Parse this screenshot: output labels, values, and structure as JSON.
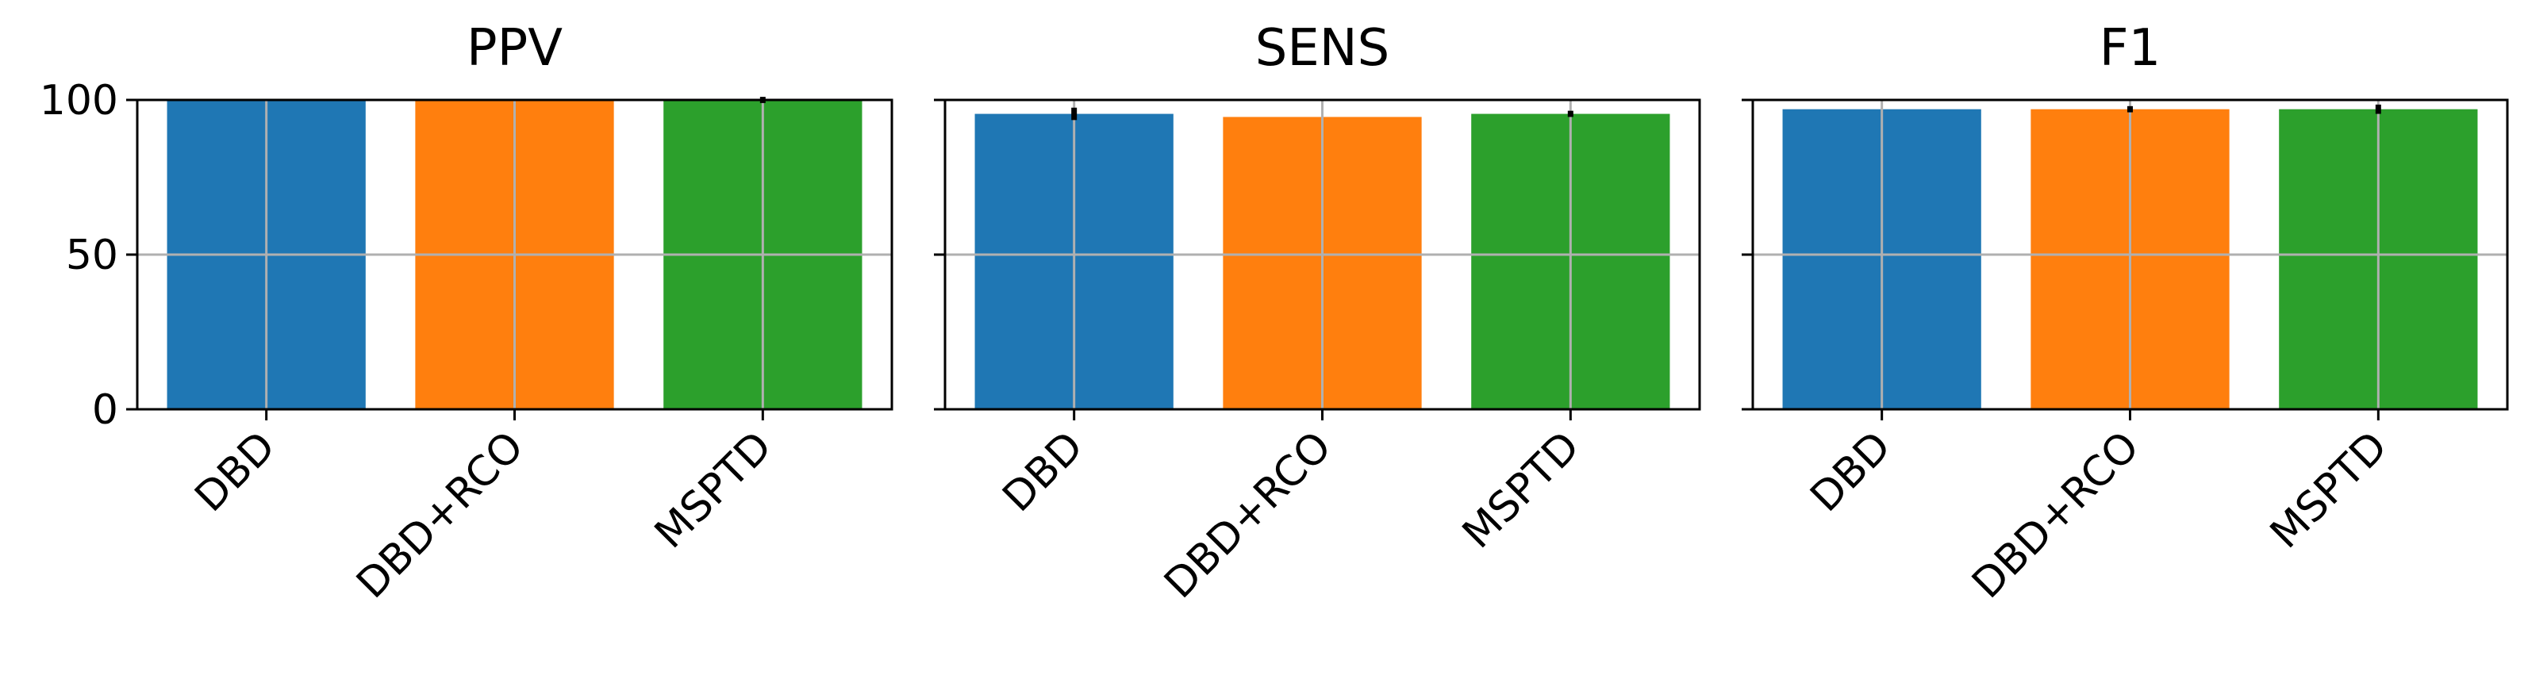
{
  "chart_data": [
    {
      "type": "bar",
      "title": "PPV",
      "categories": [
        "DBD",
        "DBD+RCO",
        "MSPTD"
      ],
      "values": [
        100,
        100,
        100
      ],
      "errors": [
        0,
        0,
        1
      ],
      "colors": [
        "#1f77b4",
        "#ff7f0e",
        "#2ca02c"
      ],
      "ylim": [
        0,
        100
      ],
      "yticks": [
        0,
        50,
        100
      ],
      "grid": true
    },
    {
      "type": "bar",
      "title": "SENS",
      "categories": [
        "DBD",
        "DBD+RCO",
        "MSPTD"
      ],
      "values": [
        95.5,
        94.5,
        95.5
      ],
      "errors": [
        2,
        0,
        1
      ],
      "colors": [
        "#1f77b4",
        "#ff7f0e",
        "#2ca02c"
      ],
      "ylim": [
        0,
        100
      ],
      "yticks": [
        0,
        50,
        100
      ],
      "grid": true
    },
    {
      "type": "bar",
      "title": "F1",
      "categories": [
        "DBD",
        "DBD+RCO",
        "MSPTD"
      ],
      "values": [
        97,
        97,
        97
      ],
      "errors": [
        0,
        1,
        1.5
      ],
      "colors": [
        "#1f77b4",
        "#ff7f0e",
        "#2ca02c"
      ],
      "ylim": [
        0,
        100
      ],
      "yticks": [
        0,
        50,
        100
      ],
      "grid": true
    }
  ]
}
